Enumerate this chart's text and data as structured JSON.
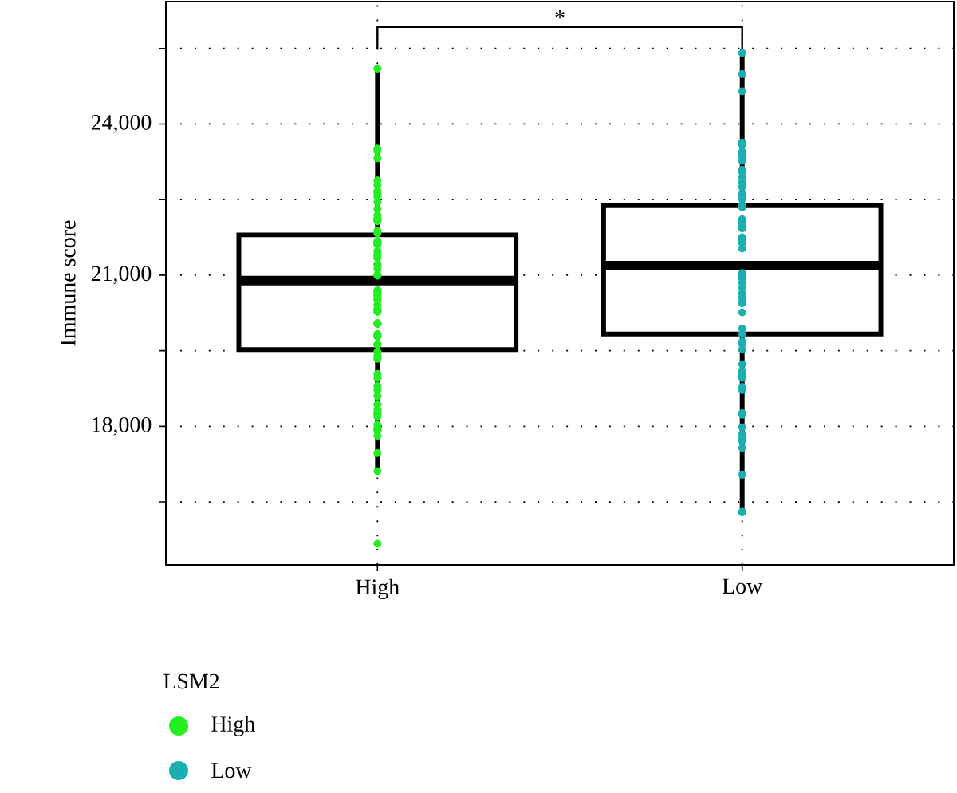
{
  "chart_data": {
    "type": "box",
    "ylabel": "Immune score",
    "legend_title": "LSM2",
    "annotations": [
      "*"
    ],
    "categories": [
      "High",
      "Low"
    ],
    "boxes": [
      {
        "low": 17110,
        "q1": 19520,
        "median": 20890,
        "q3": 21800,
        "high": 25090
      },
      {
        "low": 16300,
        "q1": 19830,
        "median": 21190,
        "q3": 22380,
        "high": 25410
      }
    ],
    "ylim": [
      15250,
      26430
    ],
    "yticks": [
      {
        "value": 16500,
        "label": null
      },
      {
        "value": 18000,
        "label": "18,000"
      },
      {
        "value": 19500,
        "label": null
      },
      {
        "value": 21000,
        "label": "21,000"
      },
      {
        "value": 22500,
        "label": null
      },
      {
        "value": 24000,
        "label": "24,000"
      },
      {
        "value": 25500,
        "label": null
      }
    ],
    "grid": true,
    "legend": "bottom left",
    "marker": "circle",
    "series": [
      {
        "name": "High",
        "type": "scatter",
        "color": "#22ee22",
        "x": [
          "High",
          "High",
          "High",
          "High",
          "High",
          "High",
          "High",
          "High",
          "High",
          "High",
          "High",
          "High",
          "High",
          "High",
          "High",
          "High",
          "High",
          "High",
          "High",
          "High",
          "High",
          "High",
          "High",
          "High",
          "High",
          "High",
          "High",
          "High",
          "High",
          "High",
          "High",
          "High",
          "High",
          "High",
          "High",
          "High",
          "High",
          "High",
          "High",
          "High",
          "High",
          "High",
          "High",
          "High",
          "High",
          "High",
          "High",
          "High",
          "High",
          "High",
          "High",
          "High",
          "High",
          "High",
          "High",
          "High",
          "High",
          "High",
          "High",
          "High",
          "High",
          "High",
          "High",
          "High",
          "High",
          "High",
          "High",
          "High",
          "High",
          "High",
          "High",
          "High",
          "High",
          "High"
        ],
        "values": [
          25100,
          23510,
          23460,
          23320,
          22880,
          22780,
          22670,
          22630,
          22560,
          22450,
          22310,
          22190,
          22120,
          22120,
          22080,
          22070,
          21880,
          21830,
          21670,
          21670,
          21660,
          21620,
          21610,
          21480,
          21410,
          21380,
          21340,
          21210,
          21200,
          21120,
          21010,
          20990,
          20700,
          20660,
          20610,
          20590,
          20520,
          20520,
          20410,
          20330,
          20290,
          20270,
          20040,
          20030,
          19830,
          19810,
          19780,
          19780,
          19620,
          19620,
          19480,
          19400,
          19340,
          19040,
          18960,
          18800,
          18720,
          18600,
          18430,
          18330,
          18260,
          18240,
          18190,
          18030,
          17950,
          17950,
          17910,
          17810,
          17470,
          17110,
          15670,
          20670,
          20050,
          19620
        ]
      },
      {
        "name": "Low",
        "type": "scatter",
        "color": "#1aafb0",
        "x": [
          "Low",
          "Low",
          "Low",
          "Low",
          "Low",
          "Low",
          "Low",
          "Low",
          "Low",
          "Low",
          "Low",
          "Low",
          "Low",
          "Low",
          "Low",
          "Low",
          "Low",
          "Low",
          "Low",
          "Low",
          "Low",
          "Low",
          "Low",
          "Low",
          "Low",
          "Low",
          "Low",
          "Low",
          "Low",
          "Low",
          "Low",
          "Low",
          "Low",
          "Low",
          "Low",
          "Low",
          "Low",
          "Low",
          "Low",
          "Low",
          "Low",
          "Low",
          "Low",
          "Low",
          "Low",
          "Low",
          "Low",
          "Low",
          "Low",
          "Low",
          "Low",
          "Low",
          "Low",
          "Low",
          "Low",
          "Low",
          "Low",
          "Low",
          "Low",
          "Low",
          "Low",
          "Low",
          "Low",
          "Low",
          "Low",
          "Low",
          "Low",
          "Low",
          "Low",
          "Low",
          "Low",
          "Low",
          "Low"
        ],
        "values": [
          25410,
          24990,
          24650,
          23630,
          23590,
          23590,
          23630,
          23450,
          23410,
          23350,
          23270,
          23090,
          23050,
          22950,
          22840,
          22750,
          22620,
          22590,
          22510,
          22380,
          22350,
          22350,
          22110,
          22080,
          22030,
          21990,
          21980,
          21950,
          21940,
          21930,
          21750,
          21740,
          21730,
          21710,
          21640,
          21640,
          21530,
          21040,
          21030,
          21010,
          21010,
          21010,
          20930,
          20850,
          20750,
          20640,
          20560,
          20470,
          20440,
          20260,
          19940,
          19830,
          19680,
          19630,
          19520,
          19230,
          19100,
          19030,
          18990,
          18960,
          18780,
          18720,
          18260,
          18230,
          17980,
          17840,
          17750,
          17710,
          17570,
          17040,
          16300,
          16300,
          16300
        ]
      }
    ]
  }
}
